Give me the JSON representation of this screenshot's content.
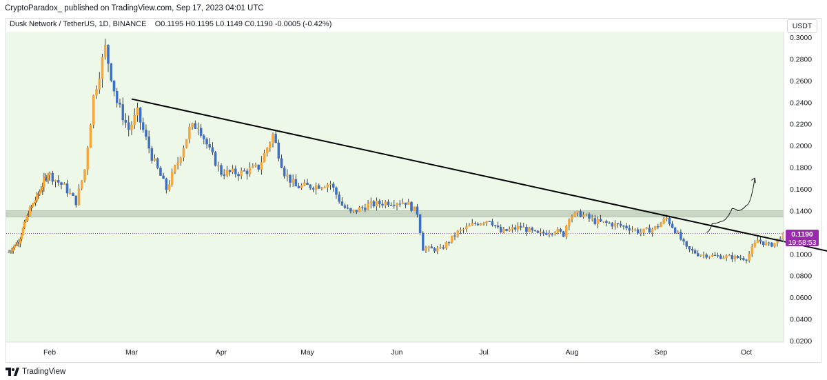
{
  "header": {
    "publish_line": "CryptoParadox_ published on TradingView.com, Sep 17, 2023 04:01 UTC",
    "symbol_line": "Dusk Network / TetherUS, 1D, BINANCE",
    "ohlc": "O0.1195 H0.1195 L0.1149 C0.1190 -0.0005 (-0.42%)",
    "currency": "USDT"
  },
  "price_badge": {
    "price": "0.1190",
    "countdown": "19:58:53",
    "color": "#9c27b0"
  },
  "footer": {
    "label": "TradingView"
  },
  "colors": {
    "background_tint": "#eef8e9",
    "bull_candle": "#f7a63a",
    "bear_candle": "#3d6fc4",
    "trendline": "#000000",
    "support_zone": "#c9d6c3",
    "axis_text": "#131722"
  },
  "chart_data": {
    "type": "candlestick",
    "title": "Dusk Network / TetherUS, 1D, BINANCE",
    "xlabel": "",
    "ylabel": "",
    "x_ticks": [
      "Feb",
      "Mar",
      "Apr",
      "May",
      "Jun",
      "Jul",
      "Aug",
      "Sep",
      "Oct"
    ],
    "y_ticks": [
      "0.3000",
      "0.2800",
      "0.2600",
      "0.2400",
      "0.2200",
      "0.2000",
      "0.1800",
      "0.1600",
      "0.1400",
      "0.1200",
      "0.1000",
      "0.0800",
      "0.0600",
      "0.0400",
      "0.0200"
    ],
    "ylim": [
      0.02,
      0.305
    ],
    "last_price": 0.119,
    "series": [
      {
        "type": "close_path",
        "points": [
          {
            "date": "2023-01-03",
            "close": 0.102
          },
          {
            "date": "2023-01-10",
            "close": 0.112
          },
          {
            "date": "2023-01-17",
            "close": 0.138
          },
          {
            "date": "2023-01-24",
            "close": 0.155
          },
          {
            "date": "2023-01-31",
            "close": 0.175
          },
          {
            "date": "2023-02-06",
            "close": 0.162
          },
          {
            "date": "2023-02-10",
            "close": 0.148
          },
          {
            "date": "2023-02-13",
            "close": 0.178
          },
          {
            "date": "2023-02-16",
            "close": 0.245
          },
          {
            "date": "2023-02-20",
            "close": 0.29
          },
          {
            "date": "2023-02-24",
            "close": 0.24
          },
          {
            "date": "2023-02-28",
            "close": 0.215
          },
          {
            "date": "2023-03-03",
            "close": 0.23
          },
          {
            "date": "2023-03-08",
            "close": 0.19
          },
          {
            "date": "2023-03-13",
            "close": 0.16
          },
          {
            "date": "2023-03-17",
            "close": 0.185
          },
          {
            "date": "2023-03-21",
            "close": 0.215
          },
          {
            "date": "2023-03-24",
            "close": 0.22
          },
          {
            "date": "2023-03-28",
            "close": 0.195
          },
          {
            "date": "2023-04-01",
            "close": 0.175
          },
          {
            "date": "2023-04-08",
            "close": 0.175
          },
          {
            "date": "2023-04-14",
            "close": 0.18
          },
          {
            "date": "2023-04-19",
            "close": 0.21
          },
          {
            "date": "2023-04-23",
            "close": 0.175
          },
          {
            "date": "2023-04-27",
            "close": 0.162
          },
          {
            "date": "2023-05-04",
            "close": 0.163
          },
          {
            "date": "2023-05-09",
            "close": 0.165
          },
          {
            "date": "2023-05-13",
            "close": 0.145
          },
          {
            "date": "2023-05-16",
            "close": 0.138
          },
          {
            "date": "2023-05-22",
            "close": 0.145
          },
          {
            "date": "2023-05-29",
            "close": 0.148
          },
          {
            "date": "2023-06-04",
            "close": 0.148
          },
          {
            "date": "2023-06-08",
            "close": 0.138
          },
          {
            "date": "2023-06-10",
            "close": 0.105
          },
          {
            "date": "2023-06-16",
            "close": 0.104
          },
          {
            "date": "2023-06-22",
            "close": 0.12
          },
          {
            "date": "2023-06-28",
            "close": 0.128
          },
          {
            "date": "2023-07-03",
            "close": 0.132
          },
          {
            "date": "2023-07-07",
            "close": 0.12
          },
          {
            "date": "2023-07-14",
            "close": 0.125
          },
          {
            "date": "2023-07-20",
            "close": 0.118
          },
          {
            "date": "2023-07-26",
            "close": 0.122
          },
          {
            "date": "2023-07-29",
            "close": 0.118
          },
          {
            "date": "2023-07-31",
            "close": 0.135
          },
          {
            "date": "2023-08-04",
            "close": 0.137
          },
          {
            "date": "2023-08-09",
            "close": 0.13
          },
          {
            "date": "2023-08-14",
            "close": 0.128
          },
          {
            "date": "2023-08-20",
            "close": 0.125
          },
          {
            "date": "2023-08-25",
            "close": 0.12
          },
          {
            "date": "2023-08-30",
            "close": 0.124
          },
          {
            "date": "2023-09-03",
            "close": 0.133
          },
          {
            "date": "2023-09-06",
            "close": 0.122
          },
          {
            "date": "2023-09-10",
            "close": 0.105
          },
          {
            "date": "2023-09-14",
            "close": 0.1
          },
          {
            "date": "2023-09-20",
            "close": 0.098
          },
          {
            "date": "2023-09-26",
            "close": 0.097
          },
          {
            "date": "2023-10-01",
            "close": 0.096
          },
          {
            "date": "2023-10-05",
            "close": 0.113
          },
          {
            "date": "2023-10-09",
            "close": 0.108
          },
          {
            "date": "2023-10-11",
            "close": 0.11
          },
          {
            "date": "2023-10-14",
            "close": 0.119
          }
        ]
      }
    ],
    "annotations": [
      {
        "type": "trendline",
        "from": {
          "date": "2023-03-01",
          "price": 0.243
        },
        "to": {
          "date": "2023-10-31",
          "price": 0.102
        }
      },
      {
        "type": "horizontal_zone",
        "price_low": 0.134,
        "price_high": 0.14
      },
      {
        "type": "projection_arrow",
        "points": [
          {
            "date": "2023-09-17",
            "price": 0.12
          },
          {
            "date": "2023-09-19",
            "price": 0.128
          },
          {
            "date": "2023-09-22",
            "price": 0.13
          },
          {
            "date": "2023-09-26",
            "price": 0.142
          },
          {
            "date": "2023-09-28",
            "price": 0.14
          },
          {
            "date": "2023-10-01",
            "price": 0.145
          },
          {
            "date": "2023-10-04",
            "price": 0.17
          }
        ]
      }
    ],
    "grid": false,
    "legend": "none"
  }
}
